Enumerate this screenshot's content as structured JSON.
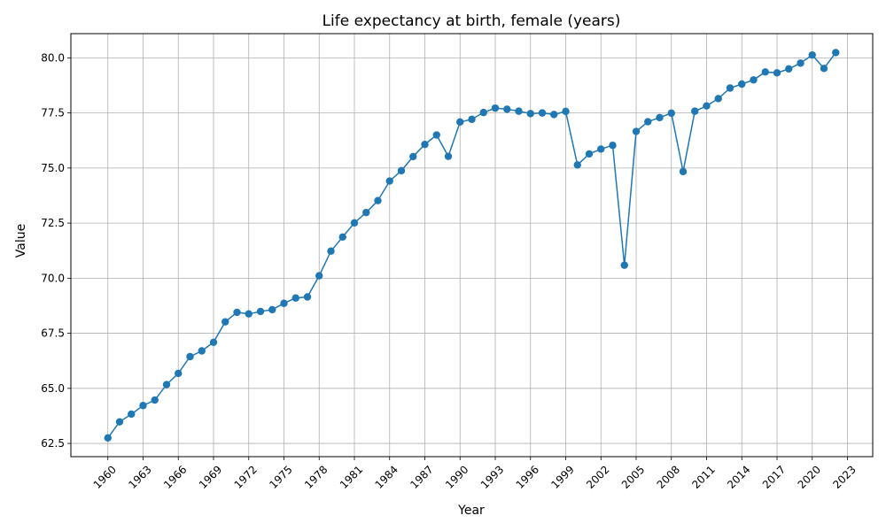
{
  "chart_data": {
    "type": "line",
    "title": "Life expectancy at birth, female (years)",
    "xlabel": "Year",
    "ylabel": "Value",
    "xlim": [
      1956.85,
      2025.15
    ],
    "ylim": [
      61.9,
      81.1
    ],
    "x_ticks": [
      1960,
      1963,
      1966,
      1969,
      1972,
      1975,
      1978,
      1981,
      1984,
      1987,
      1990,
      1993,
      1996,
      1999,
      2002,
      2005,
      2008,
      2011,
      2014,
      2017,
      2020,
      2023
    ],
    "x_tick_labels": [
      "1960",
      "1963",
      "1966",
      "1969",
      "1972",
      "1975",
      "1978",
      "1981",
      "1984",
      "1987",
      "1990",
      "1993",
      "1996",
      "1999",
      "2002",
      "2005",
      "2008",
      "2011",
      "2014",
      "2017",
      "2020",
      "2023"
    ],
    "y_ticks": [
      62.5,
      65.0,
      67.5,
      70.0,
      72.5,
      75.0,
      77.5,
      80.0
    ],
    "y_tick_labels": [
      "62.5",
      "65.0",
      "67.5",
      "70.0",
      "72.5",
      "75.0",
      "77.5",
      "80.0"
    ],
    "grid": true,
    "series": [
      {
        "color": "#1f77b4",
        "marker": "circle",
        "x": [
          1960,
          1961,
          1962,
          1963,
          1964,
          1965,
          1966,
          1967,
          1968,
          1969,
          1970,
          1971,
          1972,
          1973,
          1974,
          1975,
          1976,
          1977,
          1978,
          1979,
          1980,
          1981,
          1982,
          1983,
          1984,
          1985,
          1986,
          1987,
          1988,
          1989,
          1990,
          1991,
          1992,
          1993,
          1994,
          1995,
          1996,
          1997,
          1998,
          1999,
          2000,
          2001,
          2002,
          2003,
          2004,
          2005,
          2006,
          2007,
          2008,
          2009,
          2010,
          2011,
          2012,
          2013,
          2014,
          2015,
          2016,
          2017,
          2018,
          2019,
          2020,
          2021,
          2022
        ],
        "y": [
          62.75,
          63.48,
          63.83,
          64.22,
          64.47,
          65.17,
          65.68,
          66.44,
          66.7,
          67.09,
          68.02,
          68.45,
          68.38,
          68.49,
          68.57,
          68.86,
          69.1,
          69.15,
          70.11,
          71.23,
          71.87,
          72.51,
          72.98,
          73.52,
          74.41,
          74.88,
          75.52,
          76.07,
          76.5,
          75.53,
          77.09,
          77.21,
          77.52,
          77.72,
          77.67,
          77.58,
          77.47,
          77.5,
          77.43,
          77.57,
          75.14,
          75.64,
          75.86,
          76.03,
          70.59,
          76.66,
          77.1,
          77.29,
          77.49,
          74.84,
          77.58,
          77.82,
          78.15,
          78.63,
          78.81,
          79.0,
          79.36,
          79.32,
          79.5,
          79.76,
          80.13,
          79.52,
          80.24
        ]
      }
    ]
  }
}
